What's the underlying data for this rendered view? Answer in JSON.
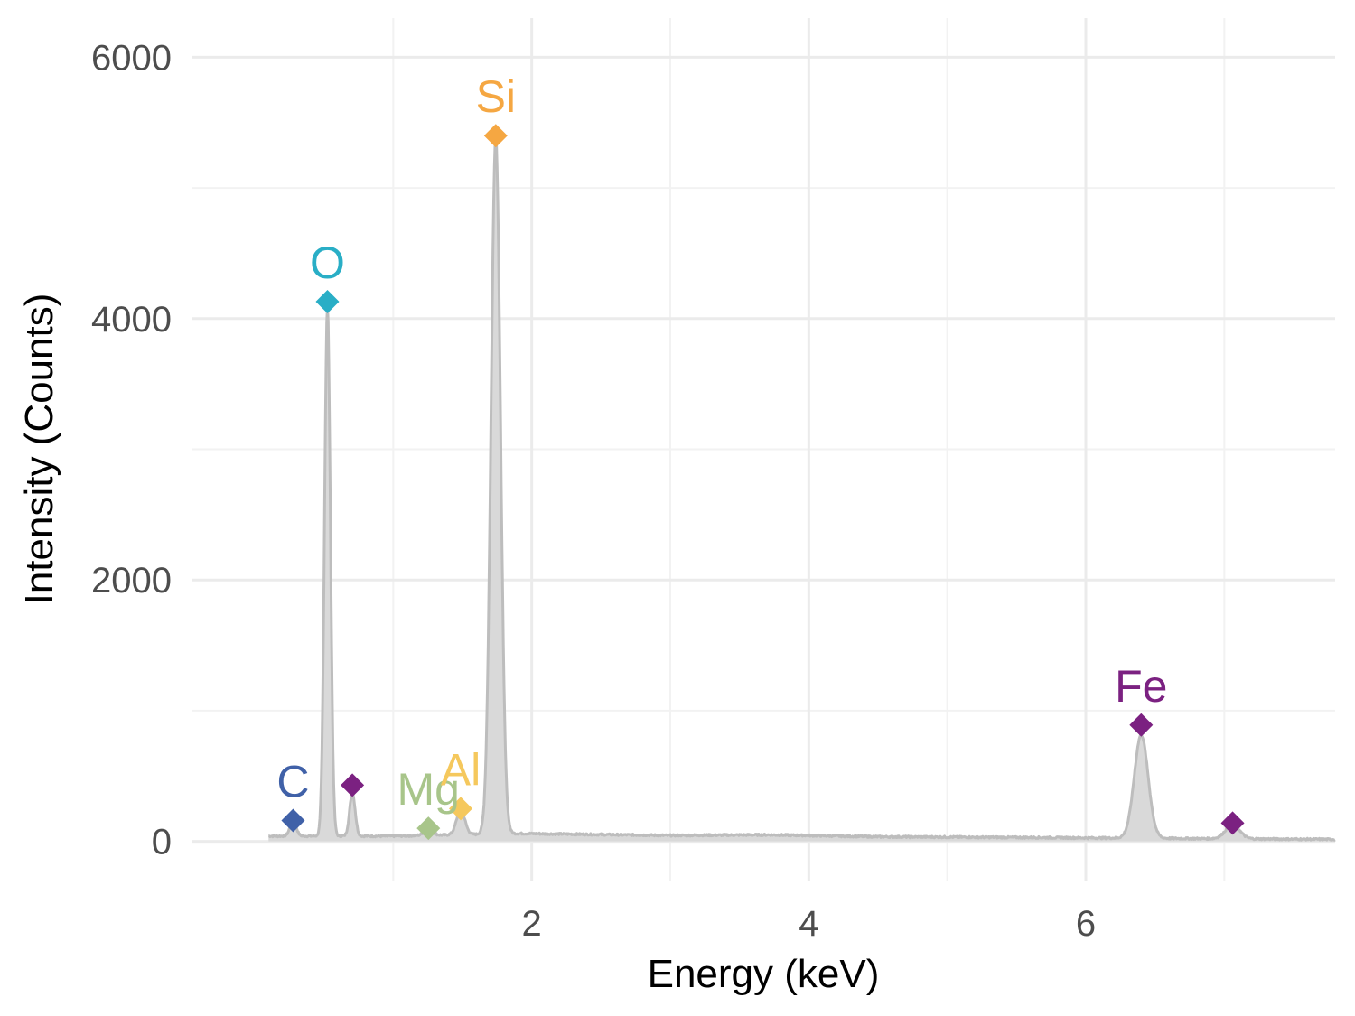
{
  "chart_data": {
    "type": "area",
    "title": "",
    "xlabel": "Energy (keV)",
    "ylabel": "Intensity (Counts)",
    "xlim": [
      -0.45,
      7.8
    ],
    "ylim": [
      -300,
      6300
    ],
    "x_ticks": [
      2,
      4,
      6
    ],
    "x_tick_labels": [
      "2",
      "4",
      "6"
    ],
    "y_ticks": [
      0,
      2000,
      4000,
      6000
    ],
    "y_tick_labels": [
      "0",
      "2000",
      "4000",
      "6000"
    ],
    "grid": true,
    "spectrum": {
      "fill_color": "#d9d9d9",
      "line_color": "#bdbdbd",
      "baseline": [
        [
          0.1,
          40
        ],
        [
          1.0,
          40
        ],
        [
          1.9,
          60
        ],
        [
          2.3,
          55
        ],
        [
          3.0,
          45
        ],
        [
          3.7,
          50
        ],
        [
          4.5,
          35
        ],
        [
          5.5,
          30
        ],
        [
          6.2,
          25
        ],
        [
          7.0,
          20
        ],
        [
          7.8,
          15
        ]
      ],
      "peaks": [
        {
          "x": 0.277,
          "height": 120,
          "sigma": 0.022
        },
        {
          "x": 0.525,
          "height": 4050,
          "sigma": 0.021
        },
        {
          "x": 0.705,
          "height": 330,
          "sigma": 0.02
        },
        {
          "x": 1.254,
          "height": 50,
          "sigma": 0.03
        },
        {
          "x": 1.487,
          "height": 190,
          "sigma": 0.03
        },
        {
          "x": 1.74,
          "height": 5330,
          "sigma": 0.034
        },
        {
          "x": 6.4,
          "height": 790,
          "sigma": 0.05
        },
        {
          "x": 7.06,
          "height": 110,
          "sigma": 0.05
        }
      ]
    },
    "markers": [
      {
        "element": "C",
        "x": 0.277,
        "y": 160,
        "color": "#4061a8",
        "label": "C"
      },
      {
        "element": "O",
        "x": 0.525,
        "y": 4130,
        "color": "#29aec6",
        "label": "O"
      },
      {
        "element": "Fe",
        "x": 0.705,
        "y": 430,
        "color": "#7b2181",
        "label": ""
      },
      {
        "element": "Mg",
        "x": 1.254,
        "y": 100,
        "color": "#a8c58a",
        "label": "Mg"
      },
      {
        "element": "Al",
        "x": 1.487,
        "y": 250,
        "color": "#f5c85d",
        "label": "Al"
      },
      {
        "element": "Si",
        "x": 1.74,
        "y": 5400,
        "color": "#f5a742",
        "label": "Si"
      },
      {
        "element": "Fe",
        "x": 6.4,
        "y": 890,
        "color": "#7b2181",
        "label": "Fe"
      },
      {
        "element": "Fe",
        "x": 7.06,
        "y": 140,
        "color": "#7b2181",
        "label": ""
      }
    ]
  }
}
